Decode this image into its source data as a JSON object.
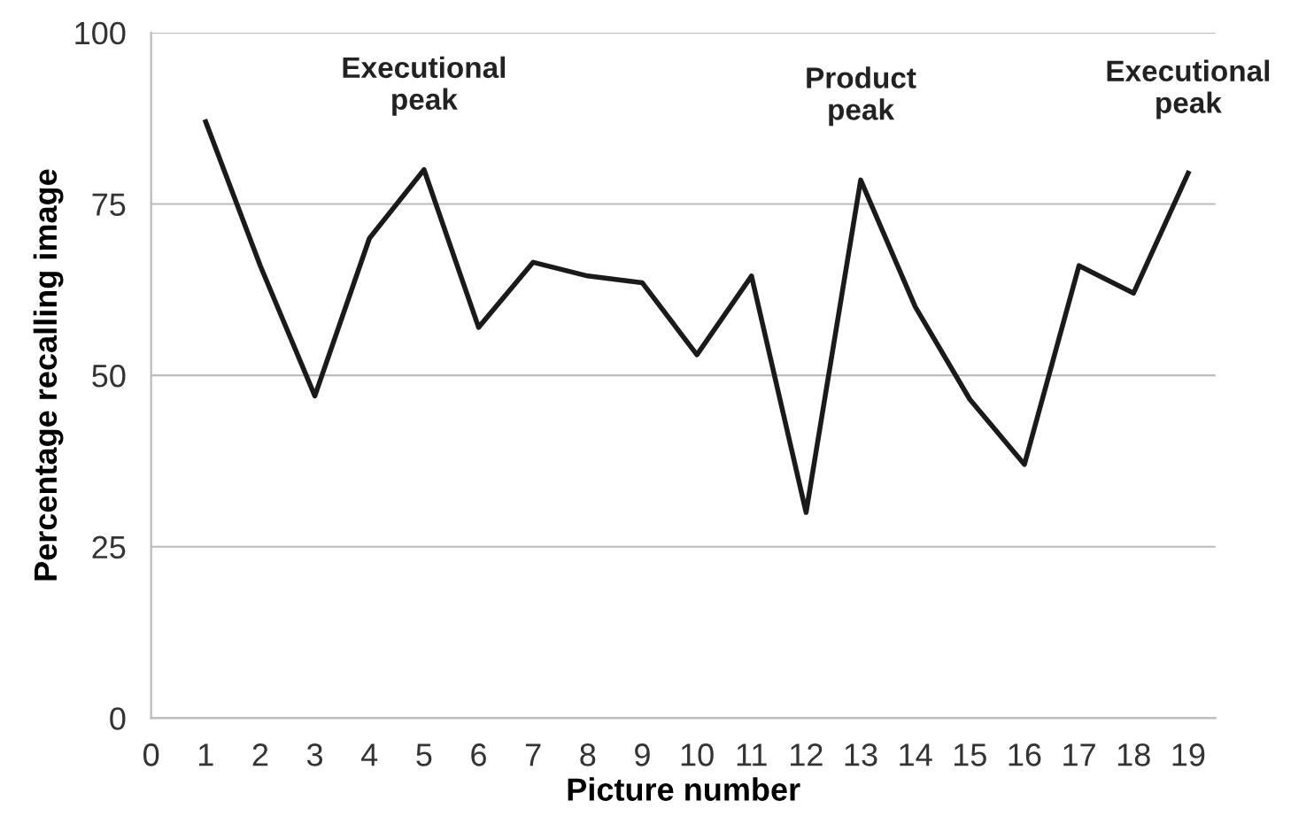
{
  "chart_data": {
    "type": "line",
    "xlabel": "Picture number",
    "ylabel": "Percentage recalling image",
    "x": [
      1,
      2,
      3,
      4,
      5,
      6,
      7,
      8,
      9,
      10,
      11,
      12,
      13,
      14,
      15,
      16,
      17,
      18,
      19
    ],
    "series": [
      {
        "color": "#1a1a1a",
        "values": [
          87,
          66,
          47,
          70,
          80,
          57,
          66.5,
          64.5,
          63.5,
          53,
          64.5,
          30,
          78.5,
          60,
          46.5,
          37,
          66,
          62,
          79.5
        ]
      }
    ],
    "xlim": [
      0,
      19.5
    ],
    "xticks": [
      0,
      1,
      2,
      3,
      4,
      5,
      6,
      7,
      8,
      9,
      10,
      11,
      12,
      13,
      14,
      15,
      16,
      17,
      18,
      19
    ],
    "ylim": [
      0,
      100
    ],
    "yticks": [
      0,
      25,
      50,
      75,
      100
    ],
    "grid": "y",
    "legend": false,
    "marker": "none",
    "line_style": "solid",
    "annotations": [
      {
        "text": "Executional\npeak",
        "x": 5,
        "y": 80
      },
      {
        "text": "Product\npeak",
        "x": 13,
        "y": 78.5
      },
      {
        "text": "Executional\npeak",
        "x": 19,
        "y": 79.5
      }
    ]
  }
}
